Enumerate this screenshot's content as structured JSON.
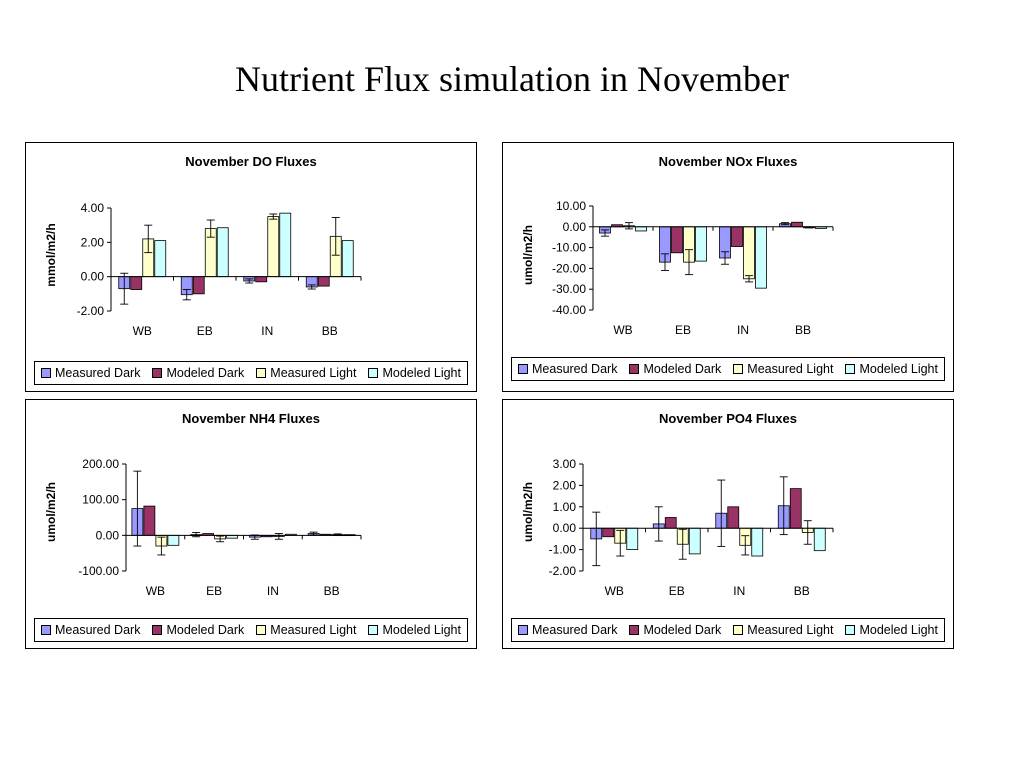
{
  "page": {
    "title": "Nutrient Flux simulation in November"
  },
  "colors": {
    "measured_dark": "#9999ff",
    "modeled_dark": "#993366",
    "measured_light": "#ffffcc",
    "modeled_light": "#ccffff"
  },
  "chart_data": [
    {
      "type": "bar",
      "title": "November DO Fluxes",
      "ylabel": "mmol/m2/h",
      "xlabel": "",
      "categories": [
        "WB",
        "EB",
        "IN",
        "BB"
      ],
      "ylim": [
        -2,
        4
      ],
      "ystep": 2,
      "tick_labels": [
        "-2.00",
        "0.00",
        "2.00",
        "4.00"
      ],
      "series": [
        {
          "name": "Measured Dark",
          "values": [
            -0.7,
            -1.05,
            -0.25,
            -0.6
          ],
          "errors": [
            0.9,
            0.3,
            0.12,
            0.12
          ]
        },
        {
          "name": "Modeled Dark",
          "values": [
            -0.75,
            -1.0,
            -0.3,
            -0.55
          ]
        },
        {
          "name": "Measured Light",
          "values": [
            2.2,
            2.8,
            3.5,
            2.35
          ],
          "errors": [
            0.8,
            0.5,
            0.15,
            1.1
          ]
        },
        {
          "name": "Modeled Light",
          "values": [
            2.1,
            2.85,
            3.7,
            2.1
          ]
        }
      ],
      "legend": "bottom"
    },
    {
      "type": "bar",
      "title": "November NOx Fluxes",
      "ylabel": "umol/m2/h",
      "xlabel": "",
      "categories": [
        "WB",
        "EB",
        "IN",
        "BB"
      ],
      "ylim": [
        -40,
        10
      ],
      "ystep": 10,
      "tick_labels": [
        "-40.00",
        "-30.00",
        "-20.00",
        "-10.00",
        "0.00",
        "10.00"
      ],
      "series": [
        {
          "name": "Measured Dark",
          "values": [
            -3,
            -17,
            -15,
            1.5
          ],
          "errors": [
            1.5,
            4,
            3,
            0.5
          ]
        },
        {
          "name": "Modeled Dark",
          "values": [
            1,
            -12.5,
            -9.5,
            2.2
          ]
        },
        {
          "name": "Measured Light",
          "values": [
            0.5,
            -17,
            -25,
            -0.3
          ],
          "errors": [
            1.5,
            6,
            1.5,
            0.2
          ]
        },
        {
          "name": "Modeled Light",
          "values": [
            -2,
            -16.5,
            -29.5,
            -0.8
          ]
        }
      ],
      "legend": "bottom"
    },
    {
      "type": "bar",
      "title": "November NH4 Fluxes",
      "ylabel": "umol/m2/h",
      "xlabel": "",
      "categories": [
        "WB",
        "EB",
        "IN",
        "BB"
      ],
      "ylim": [
        -100,
        200
      ],
      "ystep": 100,
      "tick_labels": [
        "-100.00",
        "0.00",
        "100.00",
        "200.00"
      ],
      "series": [
        {
          "name": "Measured Dark",
          "values": [
            75,
            2,
            -5,
            5
          ],
          "errors": [
            105,
            6,
            6,
            4
          ]
        },
        {
          "name": "Modeled Dark",
          "values": [
            82,
            5,
            -4,
            3
          ]
        },
        {
          "name": "Measured Light",
          "values": [
            -30,
            -10,
            -3,
            2
          ],
          "errors": [
            25,
            8,
            8,
            2
          ]
        },
        {
          "name": "Modeled Light",
          "values": [
            -28,
            -8,
            3,
            2
          ]
        }
      ],
      "legend": "bottom"
    },
    {
      "type": "bar",
      "title": "November PO4 Fluxes",
      "ylabel": "umol/m2/h",
      "xlabel": "",
      "categories": [
        "WB",
        "EB",
        "IN",
        "BB"
      ],
      "ylim": [
        -2,
        3
      ],
      "ystep": 1,
      "tick_labels": [
        "-2.00",
        "-1.00",
        "0.00",
        "1.00",
        "2.00",
        "3.00"
      ],
      "series": [
        {
          "name": "Measured Dark",
          "values": [
            -0.5,
            0.2,
            0.7,
            1.05
          ],
          "errors": [
            1.25,
            0.8,
            1.55,
            1.35
          ]
        },
        {
          "name": "Modeled Dark",
          "values": [
            -0.4,
            0.5,
            1.0,
            1.85
          ]
        },
        {
          "name": "Measured Light",
          "values": [
            -0.7,
            -0.75,
            -0.8,
            -0.2
          ],
          "errors": [
            0.6,
            0.7,
            0.45,
            0.55
          ]
        },
        {
          "name": "Modeled Light",
          "values": [
            -1.0,
            -1.2,
            -1.3,
            -1.05
          ]
        }
      ],
      "legend": "bottom"
    }
  ]
}
